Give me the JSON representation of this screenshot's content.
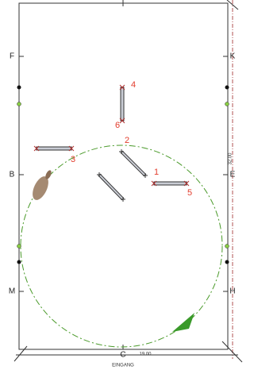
{
  "arena": {
    "letters": {
      "F": "F",
      "K": "K",
      "B": "B",
      "E": "E",
      "M": "M",
      "H": "H",
      "C": "C"
    },
    "width_label": "19.00",
    "length_label": "32.00",
    "entrance": "EINGANG"
  },
  "jumps": {
    "labels": [
      "1",
      "2",
      "3",
      "4",
      "5",
      "6"
    ]
  }
}
